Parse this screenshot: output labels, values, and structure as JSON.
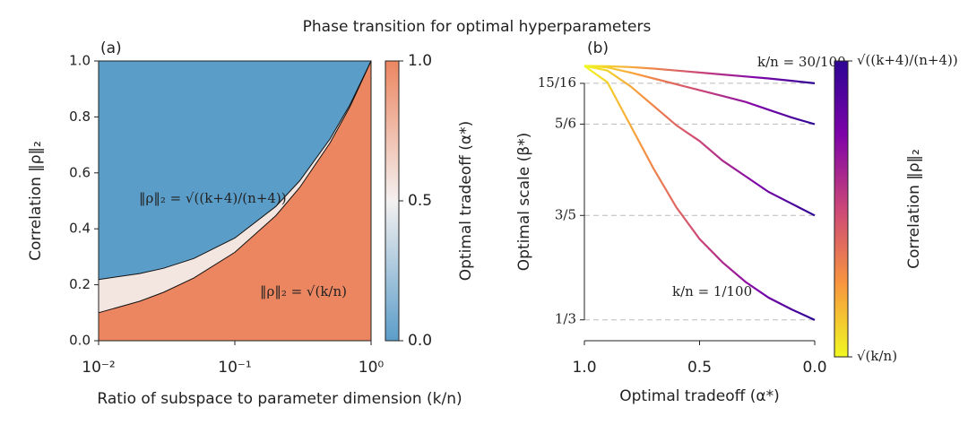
{
  "chart_data": [
    {
      "type": "area",
      "panel": "(a)",
      "title": "Phase transition for optimal hyperparameters",
      "xlabel": "Ratio of subspace to parameter dimension (k/n)",
      "ylabel": "Correlation ‖ρ‖₂",
      "xscale": "log",
      "xlim": [
        0.01,
        1
      ],
      "ylim": [
        0,
        1
      ],
      "xticks": [
        {
          "value": 0.01,
          "label": "10⁻²"
        },
        {
          "value": 0.1,
          "label": "10⁻¹"
        },
        {
          "value": 1,
          "label": "10⁰"
        }
      ],
      "yticks": [
        {
          "value": 0,
          "label": "0.0"
        },
        {
          "value": 0.2,
          "label": "0.2"
        },
        {
          "value": 0.4,
          "label": "0.4"
        },
        {
          "value": 0.6,
          "label": "0.6"
        },
        {
          "value": 0.8,
          "label": "0.8"
        },
        {
          "value": 1,
          "label": "1.0"
        }
      ],
      "x": [
        0.01,
        0.02,
        0.03,
        0.05,
        0.1,
        0.2,
        0.3,
        0.5,
        0.7,
        1
      ],
      "series": [
        {
          "values": [
            0.219,
            0.24,
            0.259,
            0.294,
            0.367,
            0.48,
            0.572,
            0.721,
            0.844,
            1
          ]
        },
        {
          "values": [
            0.1,
            0.141,
            0.173,
            0.224,
            0.316,
            0.447,
            0.548,
            0.707,
            0.837,
            1
          ]
        }
      ],
      "annotations": [
        "‖ρ‖₂ = √((k+4)/(n+4))",
        "‖ρ‖₂ = √(k/n)"
      ],
      "colormap": [
        "#5b9dc9",
        "#f4f1f0",
        "#ec8661"
      ],
      "colorbar": {
        "label": "Optimal tradeoff (α*)",
        "lim": [
          0,
          1
        ],
        "ticks": [
          {
            "value": 0,
            "label": "0.0"
          },
          {
            "value": 0.5,
            "label": "0.5"
          },
          {
            "value": 1,
            "label": "1.0"
          }
        ]
      }
    },
    {
      "type": "line",
      "panel": "(b)",
      "xlabel": "Optimal tradeoff (α*)",
      "ylabel": "Optimal scale (β*)",
      "xlim": [
        1,
        0
      ],
      "ylim": [
        0.28,
        0.99
      ],
      "xticks": [
        {
          "value": 1,
          "label": "1.0"
        },
        {
          "value": 0.5,
          "label": "0.5"
        },
        {
          "value": 0,
          "label": "0.0"
        }
      ],
      "yticks": [
        {
          "value": 0.3333,
          "label": "1/3"
        },
        {
          "value": 0.6,
          "label": "3/5"
        },
        {
          "value": 0.8333,
          "label": "5/6"
        },
        {
          "value": 0.9375,
          "label": "15/16"
        }
      ],
      "grid": true,
      "x": [
        1,
        0.9,
        0.8,
        0.7,
        0.6,
        0.5,
        0.4,
        0.3,
        0.2,
        0.1,
        0
      ],
      "series": [
        {
          "values": [
            0.982,
            0.94,
            0.83,
            0.72,
            0.62,
            0.54,
            0.48,
            0.43,
            0.39,
            0.36,
            0.333
          ]
        },
        {
          "values": [
            0.982,
            0.97,
            0.93,
            0.88,
            0.83,
            0.79,
            0.74,
            0.7,
            0.66,
            0.63,
            0.6
          ]
        },
        {
          "values": [
            0.982,
            0.978,
            0.965,
            0.95,
            0.935,
            0.92,
            0.905,
            0.89,
            0.87,
            0.85,
            0.833
          ]
        },
        {
          "values": [
            0.982,
            0.981,
            0.979,
            0.975,
            0.97,
            0.965,
            0.96,
            0.955,
            0.95,
            0.944,
            0.9375
          ]
        }
      ],
      "annotations": [
        "k/n = 30/100",
        "k/n = 1/100"
      ],
      "colormap": [
        "#f0f921",
        "#f89540",
        "#cc4778",
        "#7e03a8",
        "#2c0594"
      ],
      "colorbar": {
        "label": "Correlation ‖ρ‖₂",
        "lim": [
          0,
          1
        ],
        "ticks": [
          {
            "value": 0,
            "label": "√(k/n)"
          },
          {
            "value": 1,
            "label": "√((k+4)/(n+4))"
          }
        ]
      }
    }
  ]
}
